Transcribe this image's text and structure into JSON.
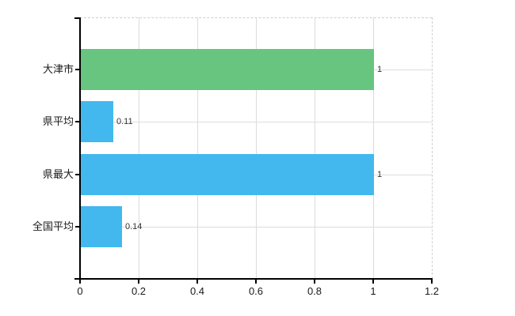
{
  "background_color": "#ffffff",
  "chart_data": {
    "type": "bar",
    "orientation": "horizontal",
    "title": "",
    "xlabel": "",
    "ylabel": "",
    "categories": [
      "大津市",
      "県平均",
      "県最大",
      "全国平均"
    ],
    "values": [
      1,
      0.11,
      1,
      0.14
    ],
    "value_labels": [
      "1",
      "0.11",
      "1",
      "0.14"
    ],
    "bar_colors": [
      "#67c57f",
      "#42b8ee",
      "#42b8ee",
      "#42b8ee"
    ],
    "xlim": [
      0,
      1.2
    ],
    "x_ticks": [
      0,
      0.2,
      0.4,
      0.6,
      0.8,
      1,
      1.2
    ],
    "x_tick_labels": [
      "0",
      "0.2",
      "0.4",
      "0.6",
      "0.8",
      "1",
      "1.2"
    ],
    "grid": true,
    "legend": null,
    "colors": {
      "grid_line": "#dcdcdc",
      "plot_border_dashed": "#d2cdd2",
      "axis_line": "#000000",
      "tick_label_color": "#1a1a1a",
      "value_label_color": "#333333"
    }
  }
}
